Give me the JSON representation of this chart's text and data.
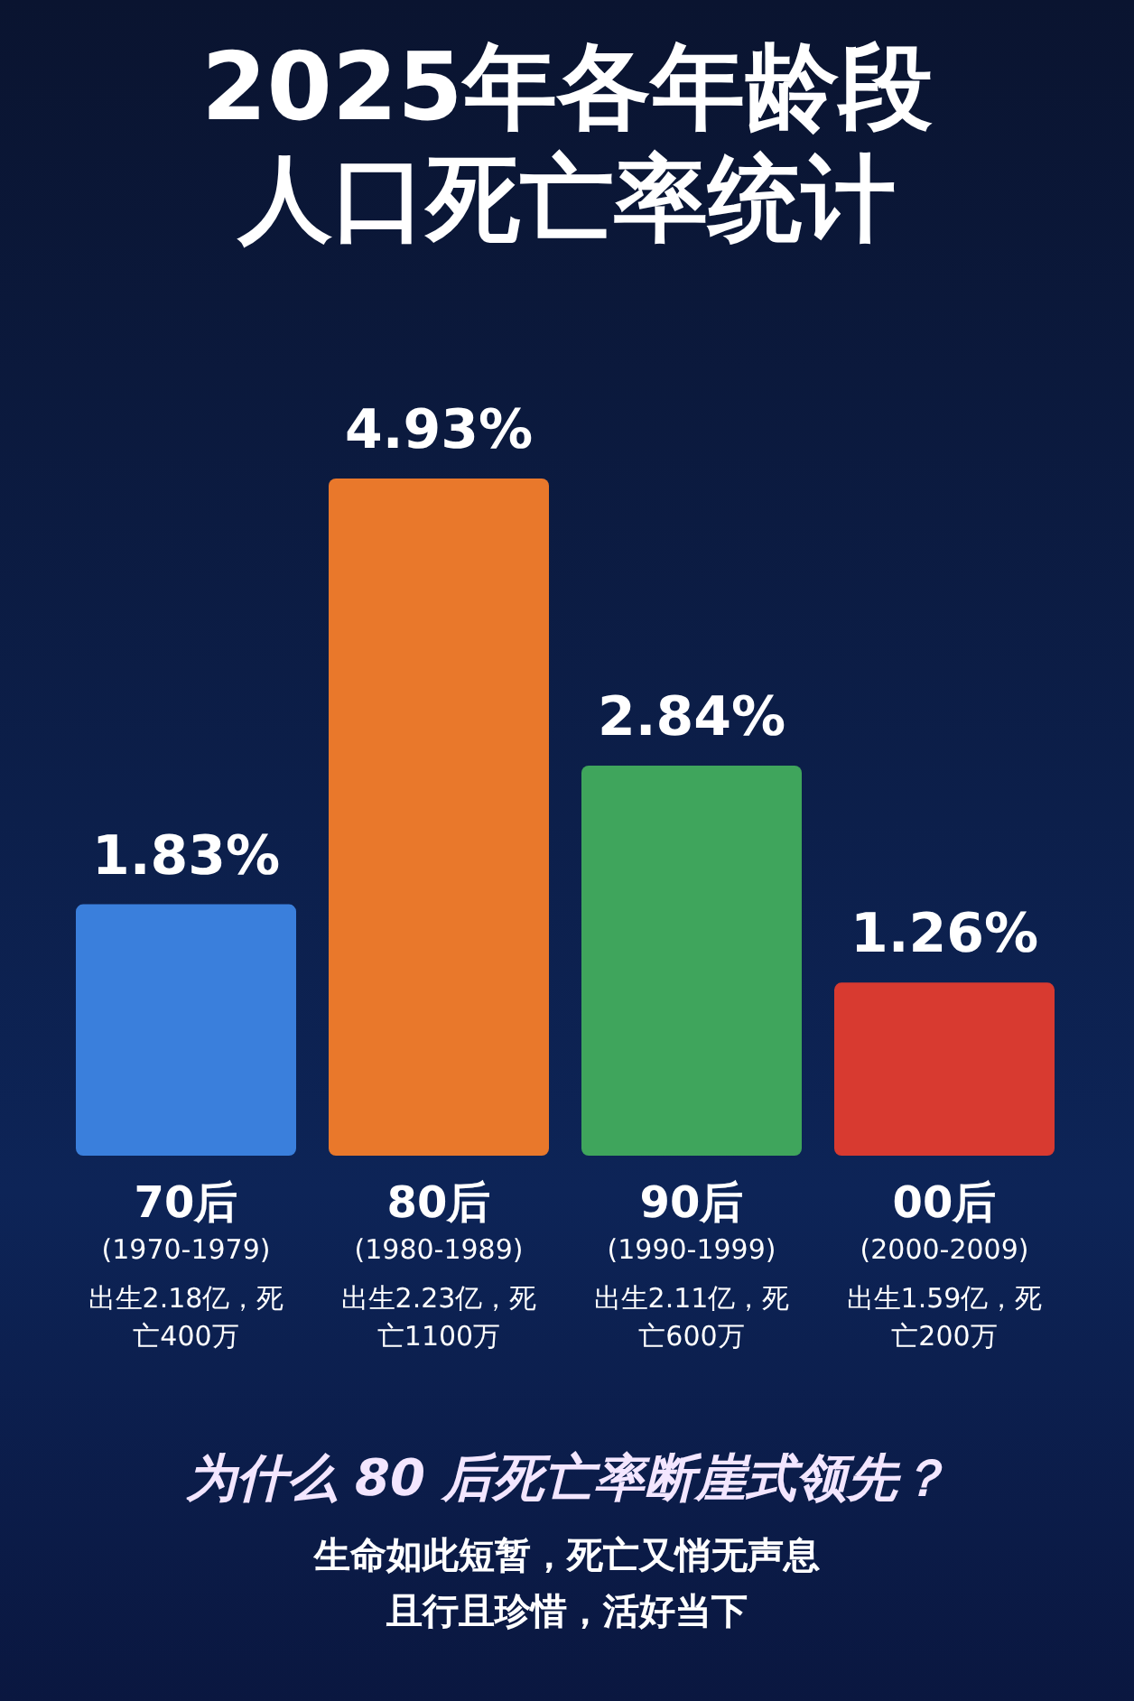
{
  "chart_data": {
    "type": "bar",
    "title": "2025年各年龄段人口死亡率统计",
    "categories": [
      "70后",
      "80后",
      "90后",
      "00后"
    ],
    "values": [
      1.83,
      4.93,
      2.84,
      1.26
    ],
    "colors": [
      "#3a7fdc",
      "#e9782b",
      "#3fa55c",
      "#d83a30"
    ],
    "value_labels": [
      "1.83%",
      "4.93%",
      "2.84%",
      "1.26%"
    ],
    "annotations": [
      "(1970-1979)",
      "出生2.18亿，死亡400万",
      "(1980-1989)",
      "出生2.23亿，死亡1100万",
      "(1990-1999)",
      "出生2.11亿，死亡600万",
      "(2000-2009)",
      "出生1.59亿，死亡200万",
      "为什么 80 后死亡率断崖式领先？",
      "生命如此短暂，死亡又悄无声息",
      "且行且珍惜，活好当下"
    ]
  }
}
